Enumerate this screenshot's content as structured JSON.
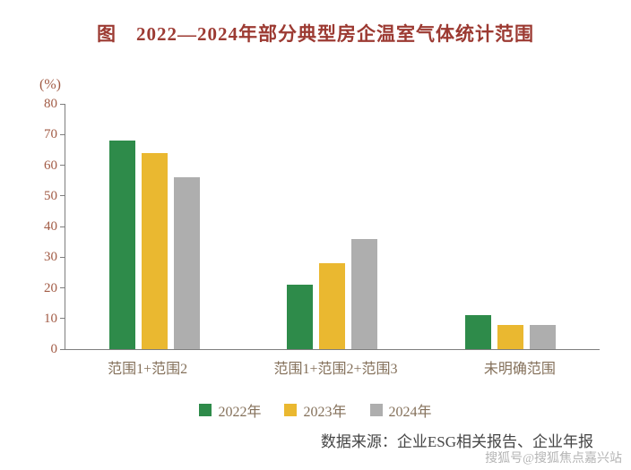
{
  "chart_data": {
    "type": "bar",
    "title": "图　2022—2024年部分典型房企温室气体统计范围",
    "unit_label": "(%)",
    "categories": [
      "范围1+范围2",
      "范围1+范围2+范围3",
      "未明确范围"
    ],
    "series": [
      {
        "name": "2022年",
        "color": "#2e8b4a",
        "values": [
          68,
          21,
          11
        ]
      },
      {
        "name": "2023年",
        "color": "#eab830",
        "values": [
          64,
          28,
          8
        ]
      },
      {
        "name": "2024年",
        "color": "#aeaeae",
        "values": [
          56,
          36,
          8
        ]
      }
    ],
    "ylim": [
      0,
      80
    ],
    "yticks": [
      0,
      10,
      20,
      30,
      40,
      50,
      60,
      70,
      80
    ],
    "grid": false,
    "legend_position": "bottom"
  },
  "footer": {
    "source": "数据来源：企业ESG相关报告、企业年报",
    "watermark": "搜狐号@搜狐焦点嘉兴站"
  },
  "colors": {
    "title": "#9c3a32",
    "tick_label": "#a25b45",
    "category_label": "#84705a",
    "legend_label": "#84705a",
    "source_text": "#454545",
    "watermark": "#9b9b9b"
  }
}
